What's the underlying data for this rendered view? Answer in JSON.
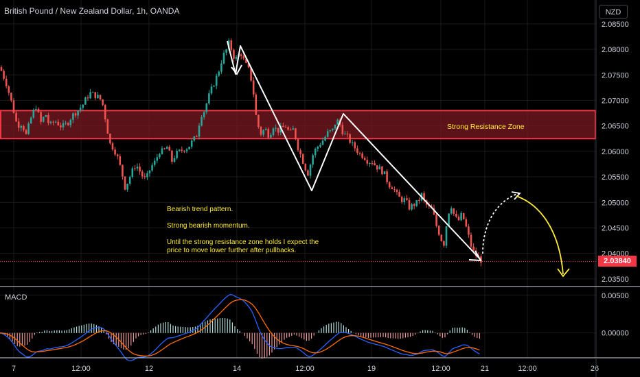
{
  "header": {
    "title": "British Pound / New Zealand Dollar, 1h, OANDA",
    "currency": "NZD"
  },
  "price_badge": "2.03840",
  "zone_label": "Strong Resistance Zone",
  "annotations": [
    "Bearish trend pattern.",
    "Strong bearish momentum.",
    "Until the strong resistance zone holds I expect the",
    "price to move lower further after pullbacks."
  ],
  "macd_label": "MACD",
  "colors": {
    "up": "#26a69a",
    "down": "#ef5350",
    "zone_border": "#f23645",
    "zone_fill": "#7a1a22",
    "annotation": "#ffeb3b",
    "macd_line": "#2962ff",
    "signal_line": "#ff6d00",
    "grid": "#1a1a1a"
  },
  "chart_data": [
    {
      "type": "candlestick",
      "x_tick_labels": [
        "7",
        "12:00",
        "12",
        "14",
        "12:00",
        "19",
        "12:00",
        "21",
        "12:00",
        "26"
      ],
      "y_tick_labels": [
        "2.08500",
        "2.08000",
        "2.07500",
        "2.07000",
        "2.06500",
        "2.06000",
        "2.05500",
        "2.05000",
        "2.04500",
        "2.04000",
        "2.03500"
      ],
      "ylim": [
        2.0335,
        2.087
      ],
      "last_price": 2.0384,
      "resistance_zone": [
        2.0625,
        2.068
      ],
      "close_path": [
        [
          0,
          2.0765
        ],
        [
          10,
          2.073
        ],
        [
          18,
          2.069
        ],
        [
          25,
          2.065
        ],
        [
          32,
          2.0655
        ],
        [
          38,
          2.0632
        ],
        [
          45,
          2.0665
        ],
        [
          52,
          2.069
        ],
        [
          60,
          2.0655
        ],
        [
          66,
          2.0675
        ],
        [
          72,
          2.065
        ],
        [
          80,
          2.066
        ],
        [
          90,
          2.0648
        ],
        [
          98,
          2.0655
        ],
        [
          105,
          2.067
        ],
        [
          113,
          2.068
        ],
        [
          120,
          2.069
        ],
        [
          126,
          2.0705
        ],
        [
          132,
          2.0715
        ],
        [
          138,
          2.071
        ],
        [
          145,
          2.0705
        ],
        [
          150,
          2.069
        ],
        [
          156,
          2.0645
        ],
        [
          160,
          2.0615
        ],
        [
          166,
          2.0605
        ],
        [
          172,
          2.0585
        ],
        [
          178,
          2.0555
        ],
        [
          182,
          2.053
        ],
        [
          186,
          2.054
        ],
        [
          192,
          2.056
        ],
        [
          198,
          2.0575
        ],
        [
          204,
          2.056
        ],
        [
          210,
          2.0545
        ],
        [
          214,
          2.055
        ],
        [
          220,
          2.057
        ],
        [
          226,
          2.058
        ],
        [
          232,
          2.06
        ],
        [
          238,
          2.06
        ],
        [
          244,
          2.061
        ],
        [
          250,
          2.058
        ],
        [
          256,
          2.0595
        ],
        [
          262,
          2.06
        ],
        [
          268,
          2.0605
        ],
        [
          274,
          2.0608
        ],
        [
          280,
          2.062
        ],
        [
          286,
          2.063
        ],
        [
          290,
          2.0655
        ],
        [
          294,
          2.0675
        ],
        [
          298,
          2.068
        ],
        [
          302,
          2.07
        ],
        [
          306,
          2.0715
        ],
        [
          312,
          2.0735
        ],
        [
          318,
          2.0755
        ],
        [
          322,
          2.0775
        ],
        [
          326,
          2.079
        ],
        [
          330,
          2.08
        ],
        [
          334,
          2.0815
        ],
        [
          338,
          2.0795
        ],
        [
          342,
          2.078
        ],
        [
          346,
          2.0785
        ],
        [
          350,
          2.0795
        ],
        [
          356,
          2.0775
        ],
        [
          362,
          2.076
        ],
        [
          368,
          2.073
        ],
        [
          372,
          2.0675
        ],
        [
          376,
          2.065
        ],
        [
          380,
          2.0635
        ],
        [
          386,
          2.0645
        ],
        [
          392,
          2.063
        ],
        [
          398,
          2.065
        ],
        [
          404,
          2.064
        ],
        [
          410,
          2.0645
        ],
        [
          416,
          2.065
        ],
        [
          422,
          2.0635
        ],
        [
          428,
          2.0645
        ],
        [
          432,
          2.0615
        ],
        [
          436,
          2.06
        ],
        [
          440,
          2.0585
        ],
        [
          444,
          2.057
        ],
        [
          448,
          2.0555
        ],
        [
          452,
          2.0575
        ],
        [
          456,
          2.0595
        ],
        [
          460,
          2.0605
        ],
        [
          466,
          2.0615
        ],
        [
          472,
          2.0625
        ],
        [
          478,
          2.0638
        ],
        [
          484,
          2.064
        ],
        [
          488,
          2.0655
        ],
        [
          492,
          2.066
        ],
        [
          496,
          2.065
        ],
        [
          500,
          2.0635
        ],
        [
          506,
          2.0628
        ],
        [
          512,
          2.0615
        ],
        [
          518,
          2.0605
        ],
        [
          524,
          2.0595
        ],
        [
          530,
          2.059
        ],
        [
          536,
          2.058
        ],
        [
          542,
          2.058
        ],
        [
          548,
          2.057
        ],
        [
          554,
          2.0565
        ],
        [
          560,
          2.0555
        ],
        [
          566,
          2.0535
        ],
        [
          572,
          2.053
        ],
        [
          578,
          2.0515
        ],
        [
          584,
          2.0505
        ],
        [
          590,
          2.0505
        ],
        [
          596,
          2.049
        ],
        [
          602,
          2.0495
        ],
        [
          608,
          2.05
        ],
        [
          614,
          2.0515
        ],
        [
          618,
          2.05
        ],
        [
          624,
          2.049
        ],
        [
          630,
          2.0485
        ],
        [
          634,
          2.046
        ],
        [
          638,
          2.0445
        ],
        [
          642,
          2.043
        ],
        [
          646,
          2.0415
        ],
        [
          650,
          2.0455
        ],
        [
          654,
          2.0485
        ],
        [
          658,
          2.0495
        ],
        [
          662,
          2.047
        ],
        [
          668,
          2.0465
        ],
        [
          672,
          2.0475
        ],
        [
          676,
          2.0465
        ],
        [
          680,
          2.0445
        ],
        [
          684,
          2.0425
        ],
        [
          688,
          2.0405
        ],
        [
          694,
          2.0395
        ],
        [
          698,
          2.039
        ],
        [
          702,
          2.0384
        ]
      ]
    },
    {
      "type": "macd",
      "y_tick_labels": [
        "0.00500",
        "0.00000"
      ],
      "ylim": [
        -0.0033,
        0.0058
      ]
    }
  ]
}
